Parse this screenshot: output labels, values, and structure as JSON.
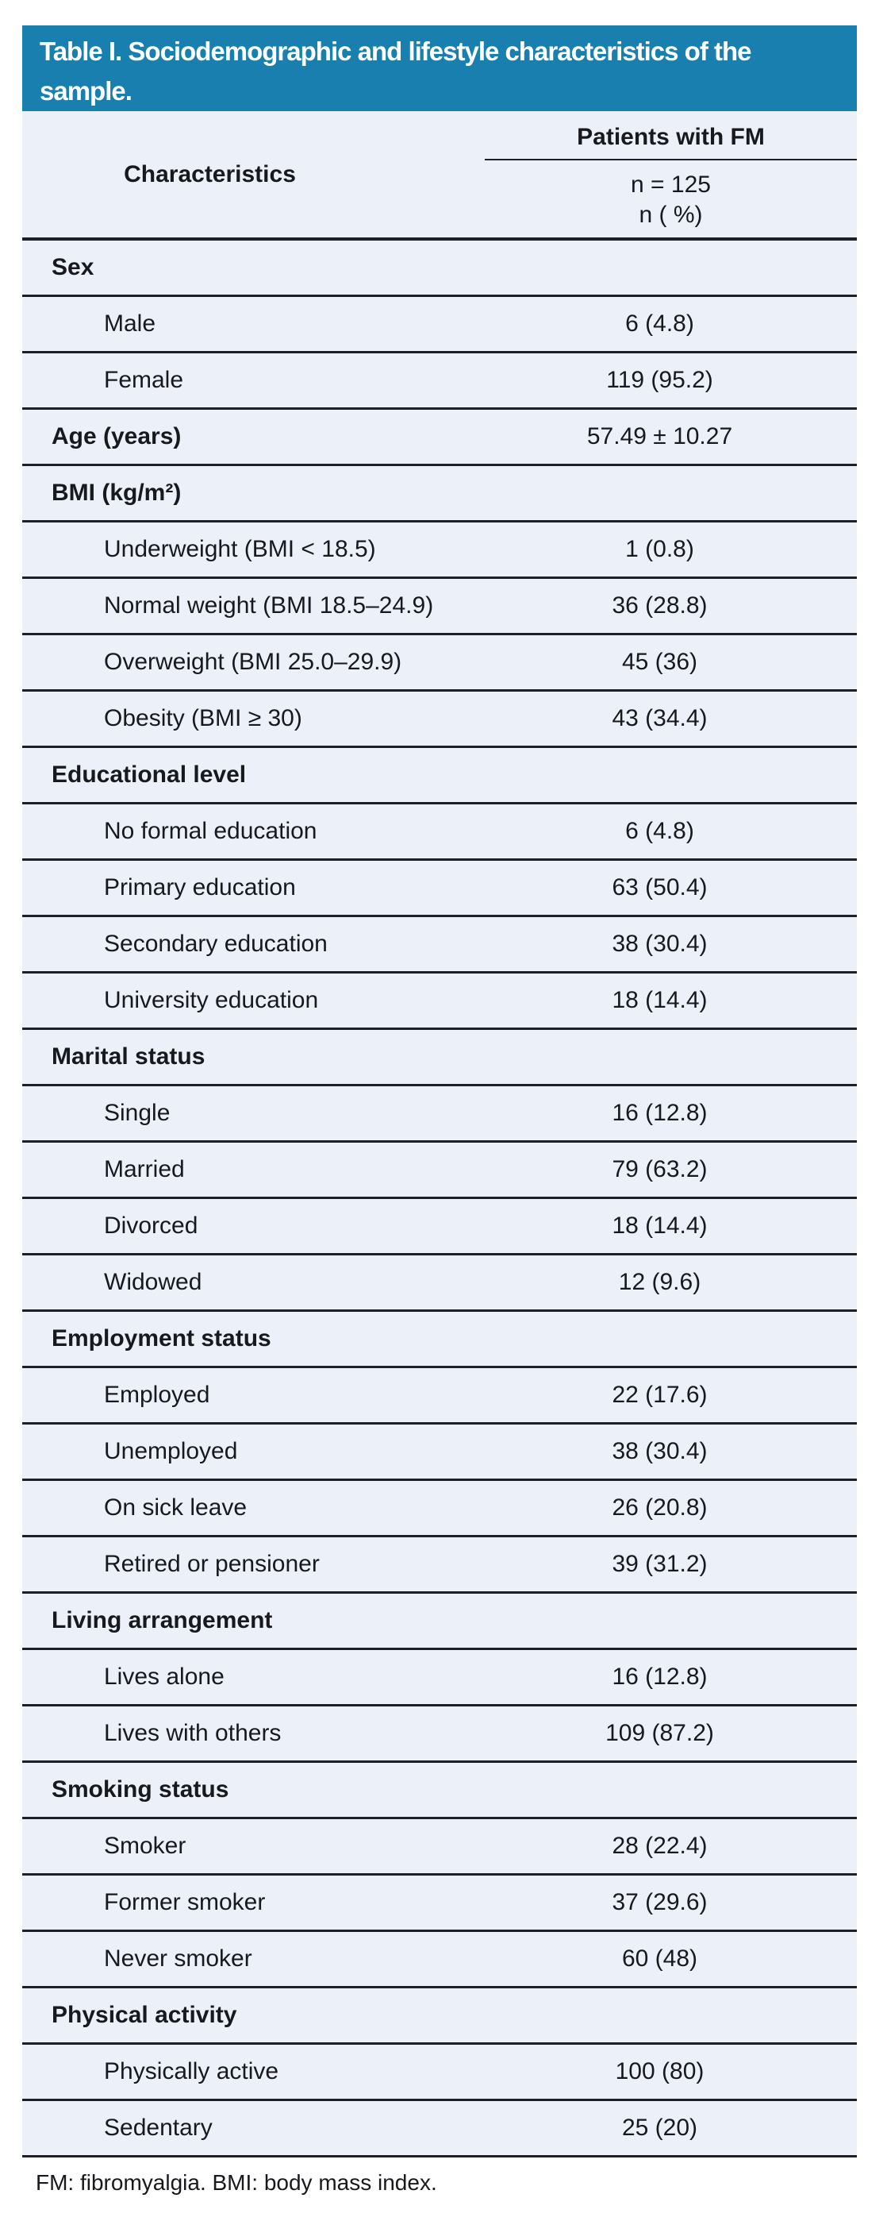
{
  "page": {
    "title": "Table I. Sociodemographic and lifestyle characteristics of the sample.",
    "footnote": "FM: fibromyalgia. BMI: body mass index."
  },
  "colors": {
    "title_bar_bg": "#187fae",
    "title_text": "#ffffff",
    "row_bg": "#ecf0f8",
    "rule_line": "#1d2026",
    "body_text": "#17191d"
  },
  "table": {
    "col_header_left": "Characteristics",
    "col_header_right": "Patients with FM",
    "subheader_line1": "n = 125",
    "subheader_line2": "n ( %)",
    "rows": [
      {
        "type": "section",
        "label": "Sex",
        "value": ""
      },
      {
        "type": "item",
        "label": "Male",
        "value": "6 (4.8)"
      },
      {
        "type": "item",
        "label": "Female",
        "value": "119 (95.2)"
      },
      {
        "type": "section",
        "label": "Age (years)",
        "value": "57.49 ± 10.27"
      },
      {
        "type": "section",
        "label": "BMI (kg/m²)",
        "value": ""
      },
      {
        "type": "item",
        "label": "Underweight (BMI < 18.5)",
        "value": "1 (0.8)"
      },
      {
        "type": "item",
        "label": "Normal weight (BMI 18.5–24.9)",
        "value": "36 (28.8)"
      },
      {
        "type": "item",
        "label": "Overweight (BMI 25.0–29.9)",
        "value": "45 (36)"
      },
      {
        "type": "item",
        "label": "Obesity (BMI ≥ 30)",
        "value": "43 (34.4)"
      },
      {
        "type": "section",
        "label": "Educational level",
        "value": ""
      },
      {
        "type": "item",
        "label": "No formal education",
        "value": "6 (4.8)"
      },
      {
        "type": "item",
        "label": "Primary education",
        "value": "63 (50.4)"
      },
      {
        "type": "item",
        "label": "Secondary education",
        "value": "38 (30.4)"
      },
      {
        "type": "item",
        "label": "University education",
        "value": "18 (14.4)"
      },
      {
        "type": "section",
        "label": "Marital status",
        "value": ""
      },
      {
        "type": "item",
        "label": "Single",
        "value": "16 (12.8)"
      },
      {
        "type": "item",
        "label": "Married",
        "value": "79 (63.2)"
      },
      {
        "type": "item",
        "label": "Divorced",
        "value": "18 (14.4)"
      },
      {
        "type": "item",
        "label": "Widowed",
        "value": "12 (9.6)"
      },
      {
        "type": "section",
        "label": "Employment status",
        "value": ""
      },
      {
        "type": "item",
        "label": "Employed",
        "value": "22 (17.6)"
      },
      {
        "type": "item",
        "label": "Unemployed",
        "value": "38 (30.4)"
      },
      {
        "type": "item",
        "label": "On sick leave",
        "value": "26 (20.8)"
      },
      {
        "type": "item",
        "label": "Retired or pensioner",
        "value": "39 (31.2)"
      },
      {
        "type": "section",
        "label": "Living arrangement",
        "value": ""
      },
      {
        "type": "item",
        "label": "Lives alone",
        "value": "16 (12.8)"
      },
      {
        "type": "item",
        "label": "Lives with others",
        "value": "109 (87.2)"
      },
      {
        "type": "section",
        "label": "Smoking status",
        "value": ""
      },
      {
        "type": "item",
        "label": "Smoker",
        "value": "28 (22.4)"
      },
      {
        "type": "item",
        "label": "Former smoker",
        "value": "37 (29.6)"
      },
      {
        "type": "item",
        "label": "Never smoker",
        "value": "60 (48)"
      },
      {
        "type": "section",
        "label": "Physical activity",
        "value": ""
      },
      {
        "type": "item",
        "label": "Physically active",
        "value": "100 (80)"
      },
      {
        "type": "item",
        "label": "Sedentary",
        "value": "25 (20)"
      }
    ]
  }
}
